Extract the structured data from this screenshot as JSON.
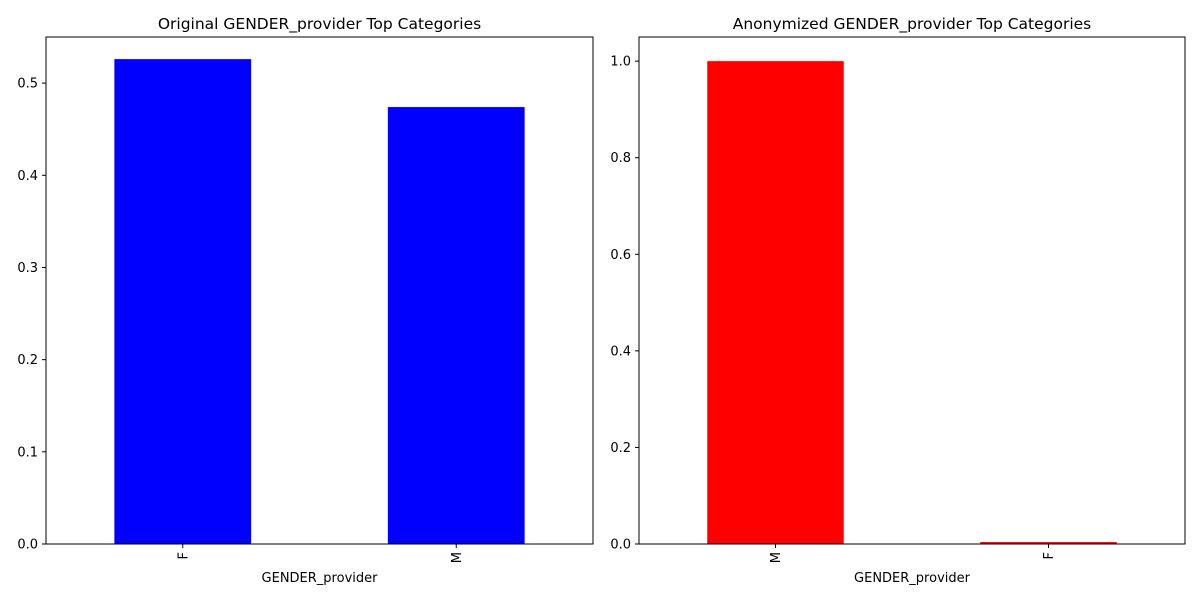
{
  "chart_data": [
    {
      "type": "bar",
      "title": "Original GENDER_provider Top Categories",
      "xlabel": "GENDER_provider",
      "ylabel": "",
      "categories": [
        "F",
        "M"
      ],
      "values": [
        0.526,
        0.474
      ],
      "ylim": [
        0,
        0.55
      ],
      "yticks": [
        "0.0",
        "0.1",
        "0.2",
        "0.3",
        "0.4",
        "0.5"
      ],
      "color": "#0000ff",
      "grid": false,
      "legend": "none"
    },
    {
      "type": "bar",
      "title": "Anonymized GENDER_provider Top Categories",
      "xlabel": "GENDER_provider",
      "ylabel": "",
      "categories": [
        "M",
        "F"
      ],
      "values": [
        1.0,
        0.004
      ],
      "ylim": [
        0,
        1.05
      ],
      "yticks": [
        "0.0",
        "0.2",
        "0.4",
        "0.6",
        "0.8",
        "1.0"
      ],
      "color": "#ff0000",
      "grid": false,
      "legend": "none"
    }
  ]
}
